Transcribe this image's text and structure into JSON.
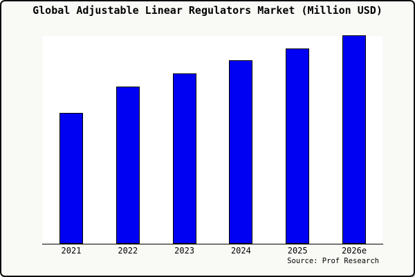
{
  "chart_data": {
    "type": "bar",
    "title": "Global Adjustable Linear Regulators Market (Million USD)",
    "categories": [
      "2021",
      "2022",
      "2023",
      "2024",
      "2025",
      "2026e"
    ],
    "values": [
      100,
      120,
      130,
      140,
      149,
      159
    ],
    "series_note": "values estimated from bar heights; no y-axis scale shown (2021 indexed to 100)",
    "xlabel": "",
    "ylabel": "",
    "ylim": [
      0,
      160
    ],
    "grid": false,
    "legend": false,
    "bar_color": "#0000f2",
    "bar_edge_color": "#000000",
    "source": "Source: Prof Research"
  },
  "colors": {
    "figure_background": "#f9f9f6",
    "plot_background": "#ffffff",
    "border": "#0a0a0a",
    "text": "#000000"
  }
}
